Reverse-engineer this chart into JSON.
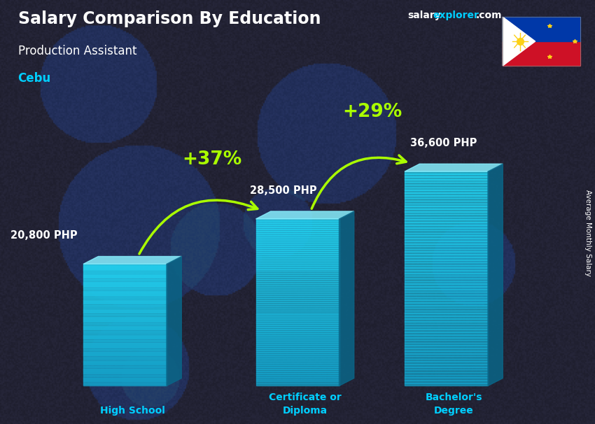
{
  "title": "Salary Comparison By Education",
  "subtitle": "Production Assistant",
  "location": "Cebu",
  "ylabel": "Average Monthly Salary",
  "categories": [
    "High School",
    "Certificate or\nDiploma",
    "Bachelor's\nDegree"
  ],
  "values": [
    20800,
    28500,
    36600
  ],
  "value_labels": [
    "20,800 PHP",
    "28,500 PHP",
    "36,600 PHP"
  ],
  "pct_labels": [
    "+37%",
    "+29%"
  ],
  "bar_face_color": "#29c8e8",
  "bar_top_color": "#7ae8f8",
  "bar_side_color": "#1a8aaa",
  "bar_alpha": 0.72,
  "title_color": "#ffffff",
  "subtitle_color": "#ffffff",
  "location_color": "#00cfff",
  "value_label_color": "#ffffff",
  "pct_color": "#aaff00",
  "arrow_color": "#aaff00",
  "xlabel_color": "#00cfff",
  "bg_color": "#1a1a2e",
  "site_word1": "salary",
  "site_word2": "explorer",
  "site_word3": ".com",
  "site_color1": "#ffffff",
  "site_color2": "#00cfff",
  "site_color3": "#ffffff"
}
